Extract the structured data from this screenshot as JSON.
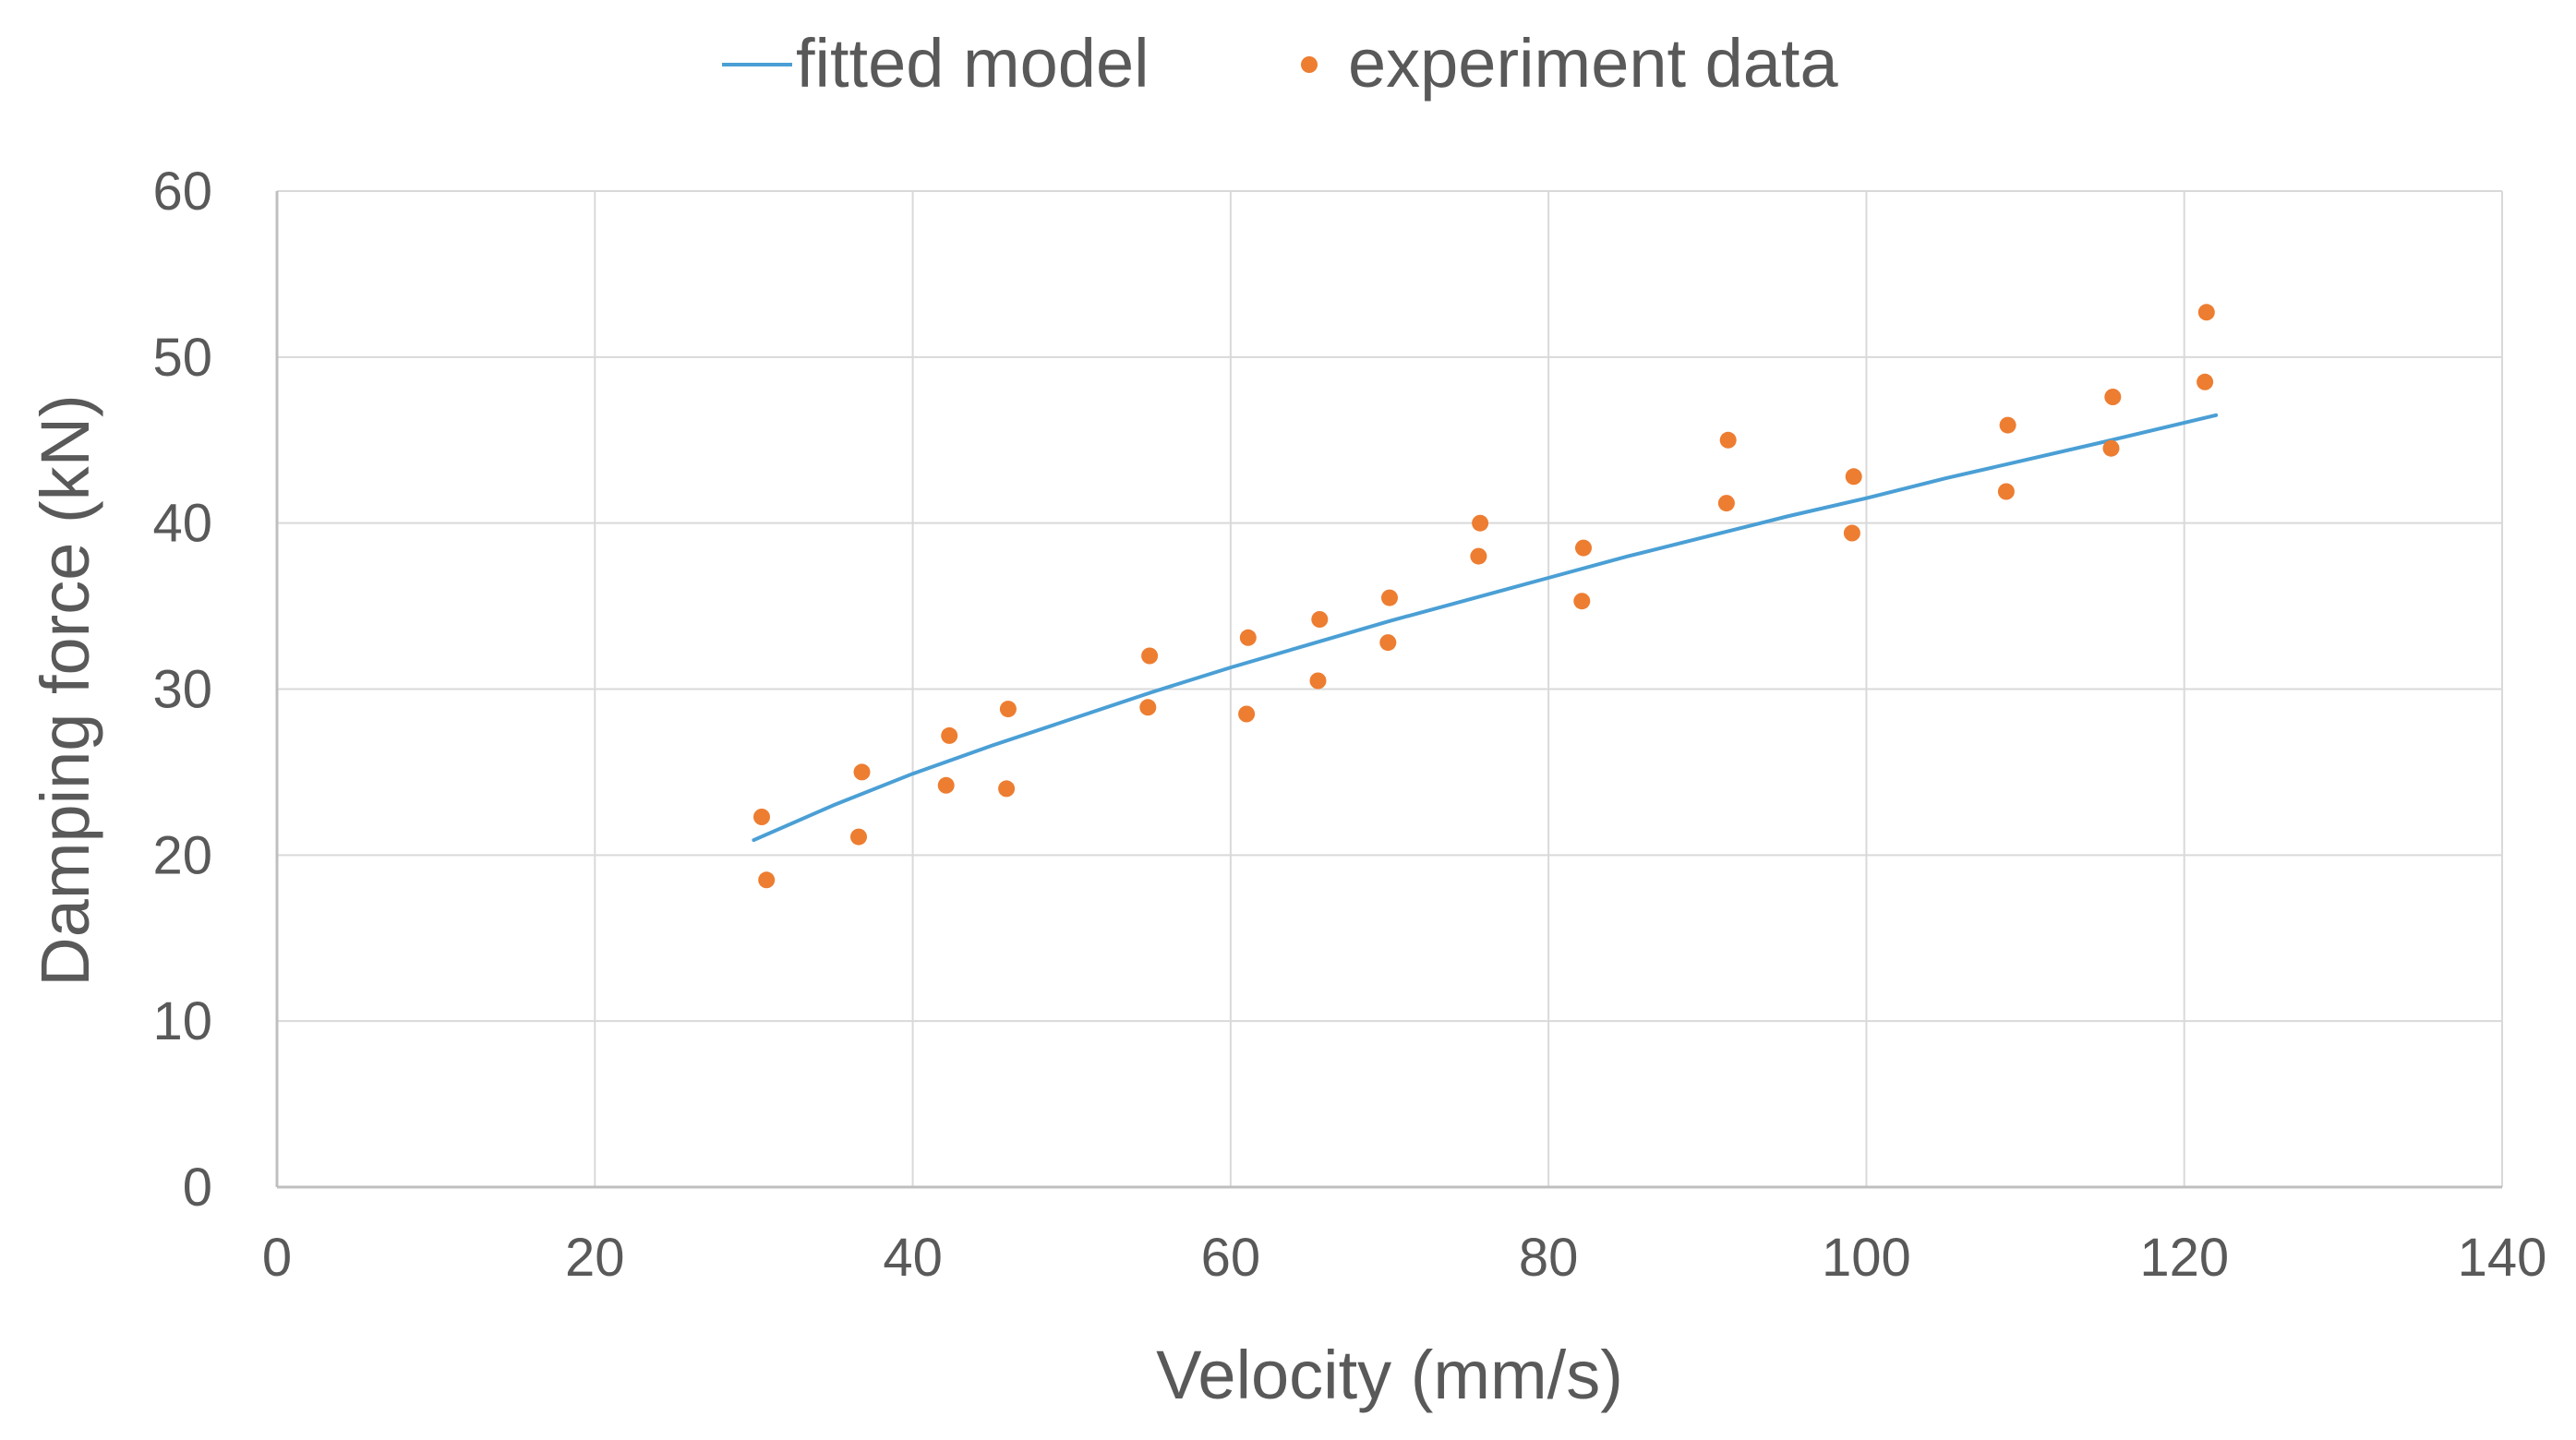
{
  "chart_data": {
    "type": "scatter",
    "title": "",
    "xlabel": "Velocity (mm/s)",
    "ylabel": "Damping force (kN)",
    "xlim": [
      0,
      140
    ],
    "ylim": [
      0,
      60
    ],
    "xticks": [
      0,
      20,
      40,
      60,
      80,
      100,
      120,
      140
    ],
    "yticks": [
      0,
      10,
      20,
      30,
      40,
      50,
      60
    ],
    "xtick_labels": [
      "0",
      "20",
      "40",
      "60",
      "80",
      "100",
      "120",
      "140"
    ],
    "ytick_labels": [
      "0",
      "10",
      "20",
      "30",
      "40",
      "50",
      "60"
    ],
    "grid": true,
    "legend_position": "top-center",
    "series": [
      {
        "name": "fitted model",
        "kind": "line",
        "color": "#4a9fd5",
        "x": [
          30,
          35,
          40,
          45,
          50,
          55,
          60,
          65,
          70,
          75,
          80,
          85,
          90,
          95,
          100,
          105,
          110,
          115,
          122
        ],
        "y": [
          20.9,
          23.0,
          24.9,
          26.6,
          28.2,
          29.8,
          31.3,
          32.7,
          34.1,
          35.4,
          36.7,
          38.0,
          39.2,
          40.4,
          41.5,
          42.7,
          43.8,
          44.9,
          46.5
        ]
      },
      {
        "name": "experiment data",
        "kind": "scatter",
        "color": "#ed7d31",
        "x": [
          30.5,
          30.8,
          36.8,
          36.6,
          42.3,
          42.1,
          46.0,
          45.9,
          54.9,
          54.8,
          61.1,
          61.0,
          65.6,
          65.5,
          70.0,
          69.9,
          75.7,
          75.6,
          82.2,
          82.1,
          91.3,
          91.2,
          99.2,
          99.1,
          108.9,
          108.8,
          115.5,
          115.4,
          121.4,
          121.3
        ],
        "y": [
          22.3,
          18.5,
          25.0,
          21.1,
          27.2,
          24.2,
          28.8,
          24.0,
          32.0,
          28.9,
          33.1,
          28.5,
          34.2,
          30.5,
          35.5,
          32.8,
          40.0,
          38.0,
          38.5,
          35.3,
          45.0,
          41.2,
          42.8,
          39.4,
          45.9,
          41.9,
          47.6,
          44.5,
          52.7,
          48.5
        ]
      }
    ]
  }
}
